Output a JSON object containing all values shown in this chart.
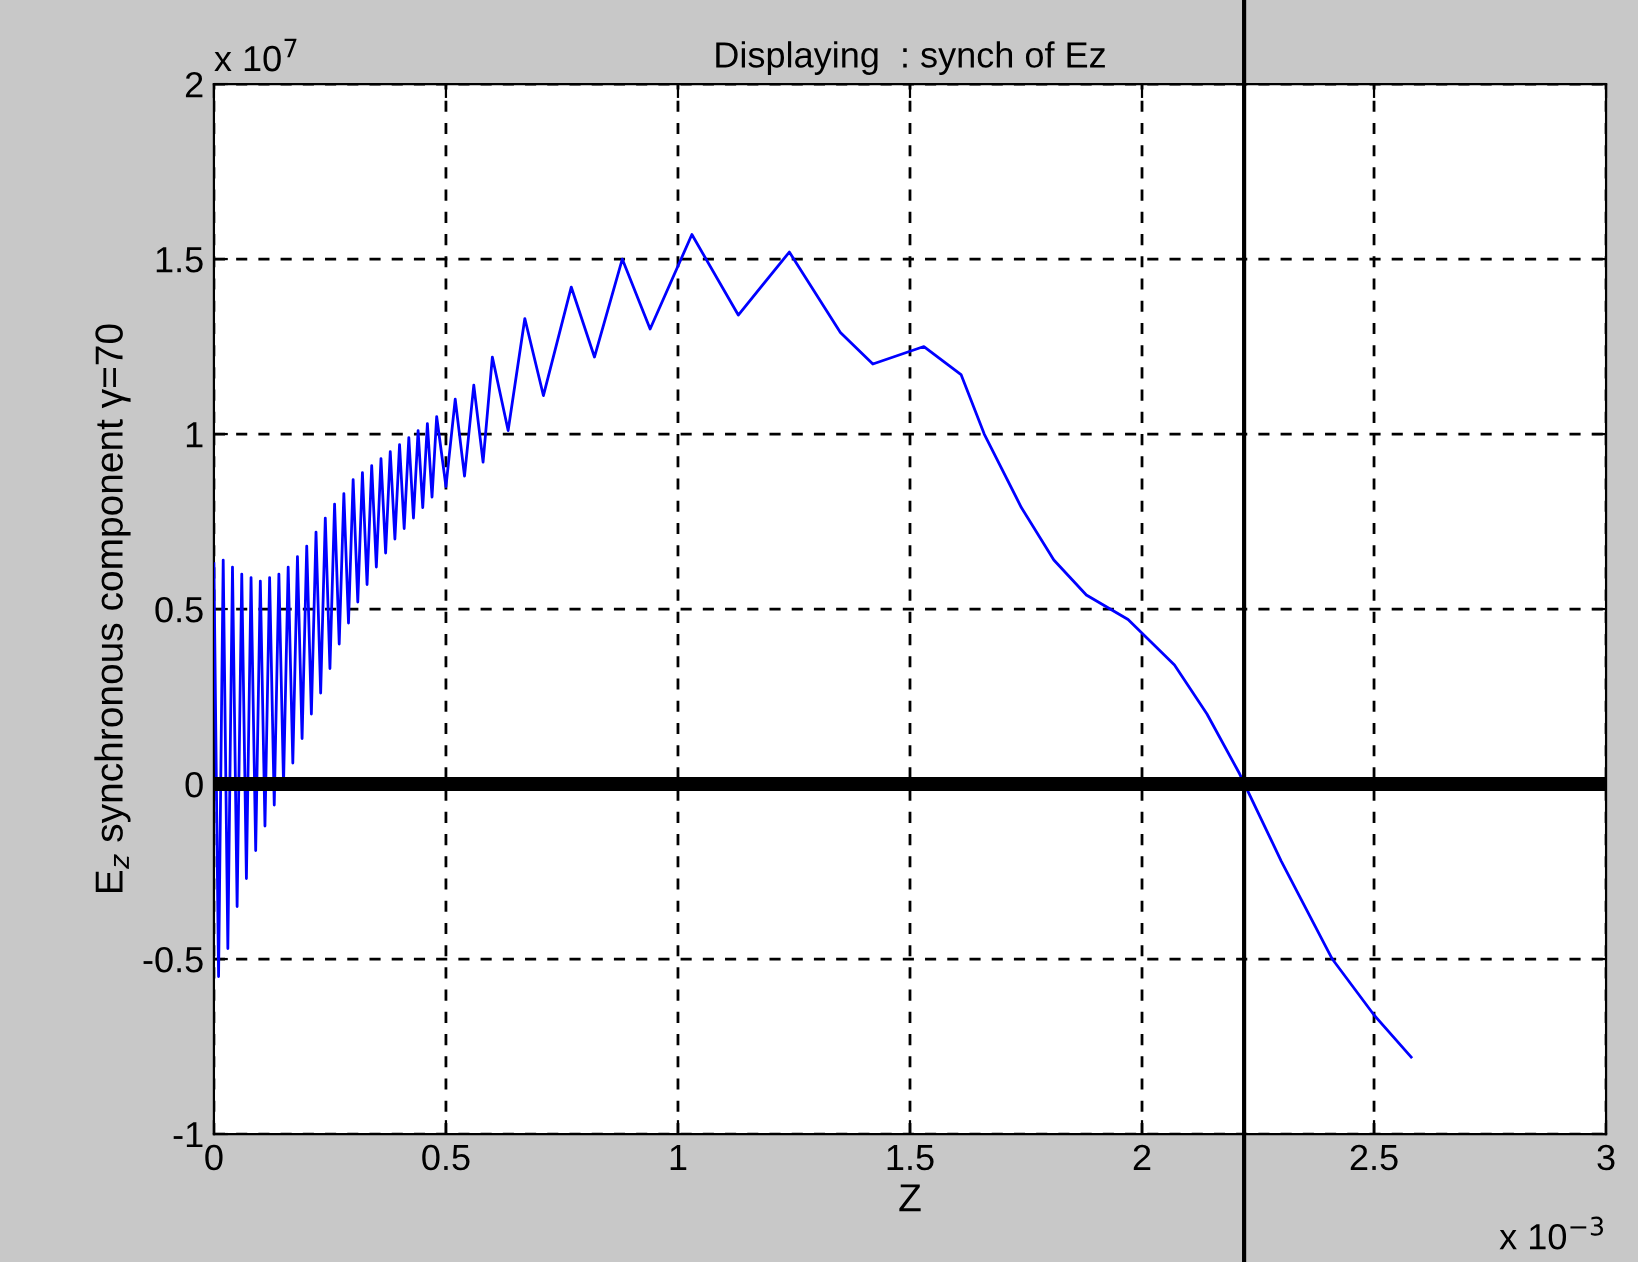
{
  "chart_data": {
    "type": "line",
    "title": "Displaying  : synch of Ez",
    "xlabel": "Z",
    "ylabel": "E$_{z}$ synchronous component γ=70",
    "annotations": [
      "x 10$^{7}$",
      "x 10$^{−3}$"
    ],
    "xlim": [
      0,
      3
    ],
    "xticks": [
      0,
      0.5,
      1,
      1.5,
      2,
      2.5,
      3
    ],
    "ylim": [
      -1,
      2
    ],
    "yticks": [
      -1,
      -0.5,
      0,
      0.5,
      1,
      1.5,
      2
    ],
    "grid": true,
    "line_style": "solid",
    "marker": "none",
    "series": [
      {
        "color": "#0000ff",
        "x": [
          0,
          0.01,
          0.02,
          0.03,
          0.04,
          0.05,
          0.06,
          0.07,
          0.08,
          0.09,
          0.1,
          0.11,
          0.12,
          0.13,
          0.14,
          0.15,
          0.16,
          0.17,
          0.18,
          0.19,
          0.2,
          0.21,
          0.22,
          0.23,
          0.24,
          0.25,
          0.26,
          0.27,
          0.28,
          0.29,
          0.3,
          0.31,
          0.32,
          0.33,
          0.34,
          0.35,
          0.36,
          0.37,
          0.38,
          0.39,
          0.4,
          0.41,
          0.42,
          0.43,
          0.44,
          0.45,
          0.46,
          0.47,
          0.48,
          0.5,
          0.52,
          0.54,
          0.56,
          0.58,
          0.6,
          0.634,
          0.67,
          0.71,
          0.77,
          0.82,
          0.88,
          0.94,
          1.03,
          1.13,
          1.24,
          1.35,
          1.42,
          1.53,
          1.61,
          1.66,
          1.74,
          1.81,
          1.88,
          1.97,
          2.07,
          2.14,
          2.21,
          2.3,
          2.41,
          2.5,
          2.58
        ],
        "values": [
          0.63,
          -0.55,
          0.64,
          -0.47,
          0.62,
          -0.35,
          0.6,
          -0.27,
          0.59,
          -0.19,
          0.58,
          -0.12,
          0.59,
          -0.06,
          0.6,
          0,
          0.62,
          0.06,
          0.65,
          0.13,
          0.68,
          0.2,
          0.72,
          0.26,
          0.76,
          0.33,
          0.8,
          0.4,
          0.83,
          0.46,
          0.87,
          0.52,
          0.89,
          0.57,
          0.91,
          0.62,
          0.93,
          0.66,
          0.95,
          0.7,
          0.97,
          0.73,
          0.99,
          0.76,
          1.01,
          0.79,
          1.03,
          0.82,
          1.05,
          0.85,
          1.1,
          0.88,
          1.14,
          0.92,
          1.22,
          1.01,
          1.33,
          1.11,
          1.42,
          1.22,
          1.5,
          1.3,
          1.57,
          1.34,
          1.52,
          1.29,
          1.2,
          1.25,
          1.17,
          1,
          0.79,
          0.64,
          0.54,
          0.47,
          0.34,
          0.2,
          0.03,
          -0.22,
          -0.5,
          -0.66,
          -0.78
        ]
      }
    ],
    "ref_lines": [
      {
        "axis": "y",
        "value": 0,
        "color": "#000000"
      },
      {
        "axis": "x",
        "value": 2.22,
        "color": "#000000"
      }
    ]
  }
}
